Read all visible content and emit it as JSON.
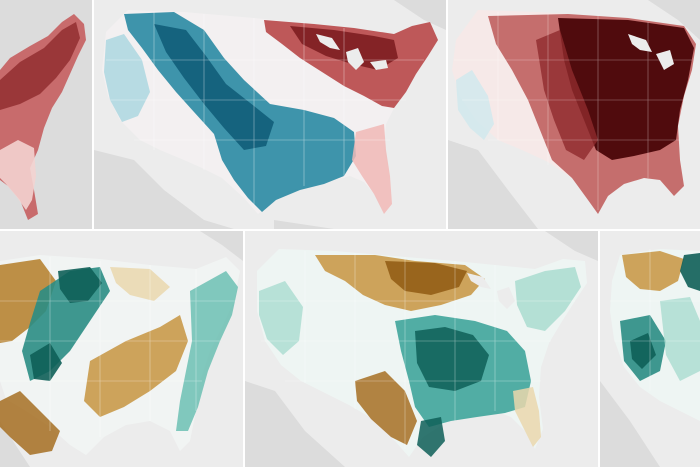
{
  "figure": {
    "rows": 2,
    "columns_visible": 3,
    "notes_visible": false
  },
  "colors": {
    "land_background": "#dcdcdc",
    "ocean_background": "#ececec",
    "state_border": "#ffffff",
    "temp_hot_strong": "#4a0508",
    "temp_hot": "#a23a3c",
    "temp_warm": "#e69a96",
    "temp_neutral": "#f7f2f2",
    "temp_cool": "#9dd3de",
    "temp_cold": "#1d7c96",
    "temp_cold_strong": "#0d5874",
    "precip_dry_strong": "#8f5a13",
    "precip_dry": "#c99a4a",
    "precip_dry_light": "#ead7ad",
    "precip_neutral": "#f2f5f4",
    "precip_wet_light": "#a9dccf",
    "precip_wet": "#3fa59b",
    "precip_wet_strong": "#0e5f58"
  },
  "panels": [
    {
      "id": "top-left",
      "variable": "temperature",
      "pattern": "east-warm"
    },
    {
      "id": "top-center",
      "variable": "temperature",
      "pattern": "west-cool-east-warm"
    },
    {
      "id": "top-right",
      "variable": "temperature",
      "pattern": "central-east-very-warm"
    },
    {
      "id": "bottom-left",
      "variable": "precipitation",
      "pattern": "mixed-dry-wet"
    },
    {
      "id": "bottom-center",
      "variable": "precipitation",
      "pattern": "central-dry-east-wet"
    },
    {
      "id": "bottom-right",
      "variable": "precipitation",
      "pattern": "west-wet-partial"
    }
  ]
}
